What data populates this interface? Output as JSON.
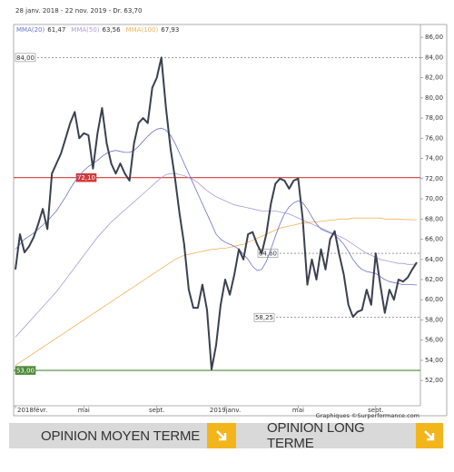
{
  "chart_data": {
    "type": "line",
    "subtitle": "28 janv. 2018 - 22 nov. 2019 - Dr. 63,70",
    "credit": "Graphiques ©Surperformance.com",
    "categories": [
      "2018févr.",
      null,
      null,
      null,
      null,
      null,
      null,
      null,
      null,
      null,
      null,
      null,
      null,
      null,
      null,
      "mai",
      null,
      null,
      null,
      null,
      null,
      null,
      null,
      null,
      null,
      null,
      null,
      null,
      null,
      null,
      null,
      "sept.",
      null,
      null,
      null,
      null,
      null,
      null,
      null,
      null,
      null,
      null,
      null,
      null,
      null,
      null,
      "2019janv.",
      null,
      null,
      null,
      null,
      null,
      null,
      null,
      null,
      null,
      null,
      null,
      null,
      null,
      null,
      null,
      "mai",
      null,
      null,
      null,
      null,
      null,
      null,
      null,
      null,
      null,
      null,
      null,
      null,
      null,
      null,
      null,
      null,
      "sept.",
      null,
      null,
      null,
      null,
      null,
      null,
      null,
      null,
      null
    ],
    "ylim": [
      49.5,
      87
    ],
    "yticks": [
      {
        "value": 52,
        "label": "52,00"
      },
      {
        "value": 54,
        "label": "54,00"
      },
      {
        "value": 56,
        "label": "56,00"
      },
      {
        "value": 58,
        "label": "58,00"
      },
      {
        "value": 60,
        "label": "60,00"
      },
      {
        "value": 62,
        "label": "62,00"
      },
      {
        "value": 64,
        "label": "64,00"
      },
      {
        "value": 66,
        "label": "66,00"
      },
      {
        "value": 68,
        "label": "68,00"
      },
      {
        "value": 70,
        "label": "70,00"
      },
      {
        "value": 72,
        "label": "72,00"
      },
      {
        "value": 74,
        "label": "74,00"
      },
      {
        "value": 76,
        "label": "76,00"
      },
      {
        "value": 78,
        "label": "78,00"
      },
      {
        "value": 80,
        "label": "80,00"
      },
      {
        "value": 82,
        "label": "82,00"
      },
      {
        "value": 84,
        "label": "84,00"
      },
      {
        "value": 86,
        "label": "86,00"
      }
    ],
    "grid": false,
    "series": [
      {
        "color": "#3b4050",
        "width": 2,
        "values": [
          63,
          66.5,
          64.7,
          65.3,
          66.2,
          67.5,
          69,
          67,
          72.5,
          73.5,
          74.5,
          76,
          77.5,
          78.6,
          76,
          76.5,
          76.3,
          73,
          76.5,
          79,
          75.5,
          73.5,
          72.5,
          73.5,
          72.5,
          71.8,
          75.5,
          77.5,
          78,
          77.5,
          81,
          82,
          84,
          79,
          75,
          72,
          68.5,
          65.5,
          61,
          59.2,
          59.2,
          61.5,
          59,
          53.1,
          55.5,
          59.5,
          62,
          60.5,
          62.5,
          65,
          64,
          66.5,
          66.7,
          65.5,
          64.6,
          66.5,
          69.5,
          71.5,
          72,
          71.8,
          71,
          71.8,
          72,
          68,
          61.5,
          64,
          62,
          65,
          63,
          66,
          66.8,
          64.5,
          62.5,
          59.5,
          58.3,
          58.8,
          59,
          61,
          59.5,
          64.6,
          61.5,
          58.7,
          61,
          60,
          62,
          61.8,
          62.2,
          63,
          63.7
        ]
      },
      {
        "name": "MMA(20)",
        "legend_label": "61,47",
        "color": "#6f74c9",
        "width": 0.8,
        "values": [
          65,
          65.5,
          66,
          66.3,
          66.6,
          67,
          67.4,
          67.8,
          68.3,
          68.8,
          69.5,
          70.2,
          71,
          71.7,
          72.3,
          72.8,
          73.2,
          73.5,
          73.8,
          74.2,
          74.5,
          74.7,
          74.8,
          74.7,
          74.6,
          74.6,
          74.8,
          75.2,
          75.7,
          76.2,
          76.6,
          76.9,
          77,
          76.8,
          76.3,
          75.5,
          74.5,
          73.5,
          72.5,
          71.5,
          70.5,
          69.5,
          68.5,
          67.5,
          66.5,
          66,
          65.7,
          65.5,
          65.3,
          65,
          64.5,
          64,
          63.3,
          62.9,
          63,
          63.8,
          65,
          66.3,
          67.5,
          68.5,
          69.2,
          69.6,
          69.8,
          69.6,
          69,
          68.2,
          67.5,
          67,
          66.8,
          66.6,
          66.4,
          66,
          65.5,
          64.8,
          64,
          63.4,
          63,
          62.8,
          62.7,
          62.6,
          62.3,
          62,
          61.8,
          61.7,
          61.6,
          61.5,
          61.5,
          61.5,
          61.47
        ]
      },
      {
        "name": "MMA(50)",
        "legend_label": "63,56",
        "color": "#ab9cd8",
        "width": 0.8,
        "values": [
          56.3,
          56.8,
          57.3,
          57.8,
          58.3,
          58.8,
          59.3,
          59.8,
          60.3,
          60.8,
          61.4,
          62,
          62.6,
          63.2,
          63.8,
          64.4,
          65,
          65.6,
          66.2,
          66.7,
          67.2,
          67.7,
          68.1,
          68.5,
          68.9,
          69.3,
          69.7,
          70.1,
          70.5,
          70.9,
          71.3,
          71.7,
          72.1,
          72.4,
          72.5,
          72.5,
          72.4,
          72.3,
          72.1,
          71.9,
          71.6,
          71.2,
          70.8,
          70.5,
          70.2,
          70,
          69.8,
          69.6,
          69.4,
          69.3,
          69.2,
          69.1,
          69,
          68.9,
          68.8,
          68.8,
          68.8,
          68.8,
          68.7,
          68.6,
          68.5,
          68.3,
          68.1,
          67.9,
          67.7,
          67.5,
          67.3,
          67.1,
          66.9,
          66.7,
          66.5,
          66.3,
          66.1,
          65.8,
          65.5,
          65.2,
          64.9,
          64.6,
          64.4,
          64.2,
          64,
          63.9,
          63.8,
          63.7,
          63.6,
          63.6,
          63.5,
          63.5,
          63.56
        ]
      },
      {
        "name": "MMA(100)",
        "legend_label": "67,93",
        "color": "#f4b25f",
        "width": 0.8,
        "values": [
          53.5,
          53.8,
          54.1,
          54.4,
          54.7,
          55,
          55.3,
          55.6,
          55.9,
          56.2,
          56.5,
          56.8,
          57.1,
          57.4,
          57.7,
          58,
          58.3,
          58.6,
          58.9,
          59.2,
          59.5,
          59.8,
          60.1,
          60.4,
          60.7,
          61,
          61.3,
          61.6,
          61.9,
          62.2,
          62.5,
          62.8,
          63.1,
          63.4,
          63.7,
          64,
          64.2,
          64.4,
          64.5,
          64.6,
          64.7,
          64.8,
          64.9,
          65,
          65,
          65.1,
          65.1,
          65.2,
          65.3,
          65.4,
          65.5,
          65.7,
          65.9,
          66.1,
          66.3,
          66.5,
          66.7,
          66.9,
          67.1,
          67.2,
          67.3,
          67.4,
          67.5,
          67.6,
          67.6,
          67.7,
          67.7,
          67.8,
          67.8,
          67.9,
          67.9,
          68,
          68,
          68,
          68.1,
          68.1,
          68.1,
          68.1,
          68.1,
          68.1,
          68.1,
          68,
          68,
          68,
          68,
          67.95,
          67.95,
          67.93,
          67.93
        ]
      }
    ],
    "levels": [
      {
        "value": 84,
        "label": "84,00",
        "color": "#666666",
        "style": "dashed"
      },
      {
        "value": 72.1,
        "label": "72,10",
        "color": "#d23a3a",
        "style": "solid"
      },
      {
        "value": 64.6,
        "label": "64,60",
        "color": "#666666",
        "style": "dashed"
      },
      {
        "value": 58.25,
        "label": "58,25",
        "color": "#666666",
        "style": "dashed"
      },
      {
        "value": 53,
        "label": "53,00",
        "color": "#4f8a3c",
        "style": "solid"
      }
    ]
  },
  "buttons": [
    "OPINION MOYEN TERME",
    "OPINION LONG TERME"
  ]
}
